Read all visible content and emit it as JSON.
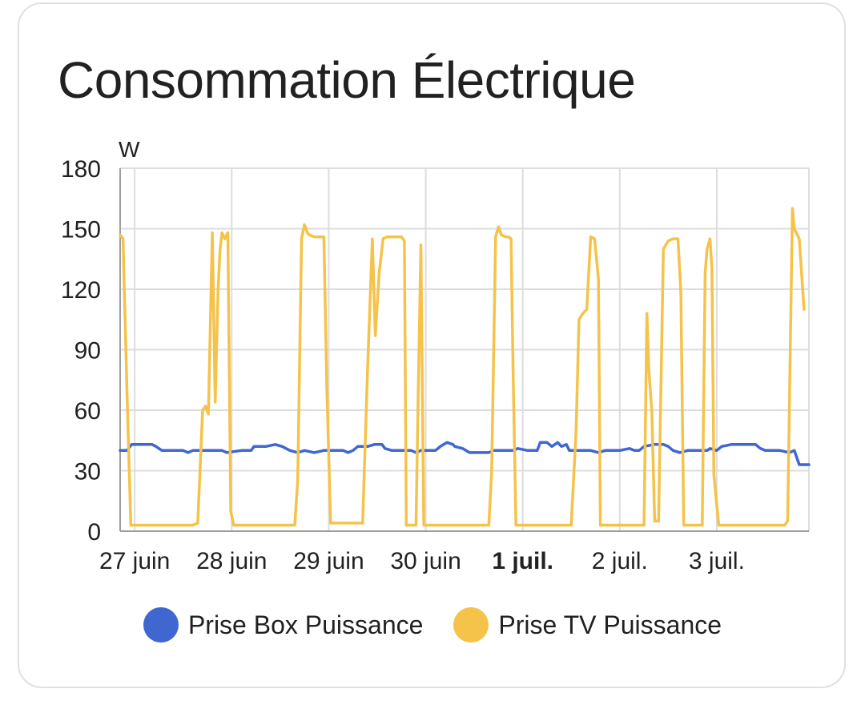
{
  "card": {
    "title": "Consommation Électrique"
  },
  "colors": {
    "box": "#3f67cf",
    "tv": "#f5c24a",
    "grid": "#dddddd",
    "axis": "#9e9e9e",
    "text": "#212121"
  },
  "chart_data": {
    "type": "line",
    "title": "Consommation Électrique",
    "ylabel": "W",
    "xlabel": "",
    "ylim": [
      0,
      180
    ],
    "yticks": [
      0,
      30,
      60,
      90,
      120,
      150,
      180
    ],
    "xlim": [
      -0.15,
      6.95
    ],
    "xticks": [
      {
        "x": 0,
        "label": "27 juin",
        "bold": false
      },
      {
        "x": 1,
        "label": "28 juin",
        "bold": false
      },
      {
        "x": 2,
        "label": "29 juin",
        "bold": false
      },
      {
        "x": 3,
        "label": "30 juin",
        "bold": false
      },
      {
        "x": 4,
        "label": "1 juil.",
        "bold": true
      },
      {
        "x": 5,
        "label": "2 juil.",
        "bold": false
      },
      {
        "x": 6,
        "label": "3 juil.",
        "bold": false
      }
    ],
    "grid": true,
    "legend": "bottom",
    "series": [
      {
        "name": "Prise Box Puissance",
        "color": "#3f67cf",
        "points": [
          [
            -0.15,
            40
          ],
          [
            -0.08,
            40
          ],
          [
            -0.03,
            43
          ],
          [
            0.1,
            43
          ],
          [
            0.18,
            43
          ],
          [
            0.22,
            42
          ],
          [
            0.28,
            40
          ],
          [
            0.5,
            40
          ],
          [
            0.55,
            39
          ],
          [
            0.6,
            40
          ],
          [
            0.7,
            40
          ],
          [
            0.75,
            40
          ],
          [
            0.8,
            40
          ],
          [
            0.9,
            40
          ],
          [
            0.95,
            39
          ],
          [
            1.1,
            40
          ],
          [
            1.2,
            40
          ],
          [
            1.23,
            42
          ],
          [
            1.35,
            42
          ],
          [
            1.45,
            43
          ],
          [
            1.52,
            42
          ],
          [
            1.6,
            40
          ],
          [
            1.68,
            39
          ],
          [
            1.75,
            40
          ],
          [
            1.85,
            39
          ],
          [
            1.95,
            40
          ],
          [
            2.1,
            40
          ],
          [
            2.15,
            40
          ],
          [
            2.2,
            39
          ],
          [
            2.25,
            40
          ],
          [
            2.3,
            42
          ],
          [
            2.4,
            42
          ],
          [
            2.47,
            43
          ],
          [
            2.55,
            43
          ],
          [
            2.58,
            41
          ],
          [
            2.65,
            40
          ],
          [
            2.75,
            40
          ],
          [
            2.85,
            40
          ],
          [
            2.9,
            39
          ],
          [
            2.95,
            40
          ],
          [
            3.1,
            40
          ],
          [
            3.15,
            42
          ],
          [
            3.22,
            44
          ],
          [
            3.28,
            43
          ],
          [
            3.3,
            42
          ],
          [
            3.38,
            41
          ],
          [
            3.45,
            39
          ],
          [
            3.55,
            39
          ],
          [
            3.65,
            39
          ],
          [
            3.7,
            40
          ],
          [
            3.8,
            40
          ],
          [
            3.85,
            40
          ],
          [
            3.9,
            40
          ],
          [
            3.95,
            41
          ],
          [
            4.05,
            40
          ],
          [
            4.1,
            40
          ],
          [
            4.15,
            40
          ],
          [
            4.18,
            44
          ],
          [
            4.25,
            44
          ],
          [
            4.3,
            42
          ],
          [
            4.36,
            44
          ],
          [
            4.4,
            42
          ],
          [
            4.45,
            43
          ],
          [
            4.48,
            40
          ],
          [
            4.55,
            40
          ],
          [
            4.6,
            40
          ],
          [
            4.7,
            40
          ],
          [
            4.78,
            39
          ],
          [
            4.85,
            40
          ],
          [
            4.9,
            40
          ],
          [
            5.0,
            40
          ],
          [
            5.1,
            41
          ],
          [
            5.15,
            40
          ],
          [
            5.2,
            40
          ],
          [
            5.25,
            42
          ],
          [
            5.35,
            43
          ],
          [
            5.45,
            43
          ],
          [
            5.5,
            42
          ],
          [
            5.55,
            40
          ],
          [
            5.62,
            39
          ],
          [
            5.7,
            40
          ],
          [
            5.8,
            40
          ],
          [
            5.9,
            40
          ],
          [
            5.93,
            41
          ],
          [
            6.0,
            40
          ],
          [
            6.05,
            42
          ],
          [
            6.15,
            43
          ],
          [
            6.22,
            43
          ],
          [
            6.28,
            43
          ],
          [
            6.35,
            43
          ],
          [
            6.4,
            43
          ],
          [
            6.45,
            41
          ],
          [
            6.5,
            40
          ],
          [
            6.55,
            40
          ],
          [
            6.6,
            40
          ],
          [
            6.65,
            40
          ],
          [
            6.75,
            39
          ],
          [
            6.8,
            40
          ],
          [
            6.85,
            33
          ],
          [
            6.95,
            33
          ]
        ]
      },
      {
        "name": "Prise TV Puissance",
        "color": "#f5c24a",
        "points": [
          [
            -0.15,
            147
          ],
          [
            -0.12,
            145
          ],
          [
            -0.08,
            70
          ],
          [
            -0.04,
            3
          ],
          [
            0.1,
            3
          ],
          [
            0.3,
            3
          ],
          [
            0.5,
            3
          ],
          [
            0.6,
            3
          ],
          [
            0.65,
            4
          ],
          [
            0.7,
            60
          ],
          [
            0.73,
            62
          ],
          [
            0.76,
            58
          ],
          [
            0.8,
            148
          ],
          [
            0.83,
            64
          ],
          [
            0.86,
            120
          ],
          [
            0.88,
            140
          ],
          [
            0.9,
            148
          ],
          [
            0.93,
            145
          ],
          [
            0.96,
            148
          ],
          [
            0.99,
            10
          ],
          [
            1.02,
            3
          ],
          [
            1.2,
            3
          ],
          [
            1.4,
            3
          ],
          [
            1.55,
            3
          ],
          [
            1.65,
            3
          ],
          [
            1.68,
            25
          ],
          [
            1.72,
            145
          ],
          [
            1.75,
            152
          ],
          [
            1.78,
            148
          ],
          [
            1.8,
            147
          ],
          [
            1.85,
            146
          ],
          [
            1.9,
            146
          ],
          [
            1.95,
            146
          ],
          [
            1.98,
            72
          ],
          [
            2.02,
            4
          ],
          [
            2.15,
            4
          ],
          [
            2.3,
            4
          ],
          [
            2.35,
            4
          ],
          [
            2.4,
            80
          ],
          [
            2.45,
            145
          ],
          [
            2.48,
            97
          ],
          [
            2.52,
            128
          ],
          [
            2.56,
            145
          ],
          [
            2.6,
            146
          ],
          [
            2.65,
            146
          ],
          [
            2.7,
            146
          ],
          [
            2.75,
            146
          ],
          [
            2.78,
            144
          ],
          [
            2.8,
            3
          ],
          [
            2.9,
            3
          ],
          [
            2.92,
            62
          ],
          [
            2.95,
            142
          ],
          [
            2.98,
            3
          ],
          [
            3.05,
            3
          ],
          [
            3.2,
            3
          ],
          [
            3.4,
            3
          ],
          [
            3.6,
            3
          ],
          [
            3.65,
            3
          ],
          [
            3.68,
            30
          ],
          [
            3.72,
            146
          ],
          [
            3.75,
            151
          ],
          [
            3.78,
            147
          ],
          [
            3.82,
            146
          ],
          [
            3.85,
            146
          ],
          [
            3.88,
            145
          ],
          [
            3.9,
            80
          ],
          [
            3.93,
            3
          ],
          [
            4.1,
            3
          ],
          [
            4.3,
            3
          ],
          [
            4.45,
            3
          ],
          [
            4.5,
            3
          ],
          [
            4.55,
            50
          ],
          [
            4.58,
            105
          ],
          [
            4.62,
            108
          ],
          [
            4.66,
            110
          ],
          [
            4.7,
            146
          ],
          [
            4.74,
            145
          ],
          [
            4.78,
            125
          ],
          [
            4.8,
            3
          ],
          [
            4.9,
            3
          ],
          [
            5.0,
            3
          ],
          [
            5.2,
            3
          ],
          [
            5.25,
            3
          ],
          [
            5.28,
            108
          ],
          [
            5.3,
            80
          ],
          [
            5.33,
            60
          ],
          [
            5.36,
            5
          ],
          [
            5.4,
            5
          ],
          [
            5.42,
            60
          ],
          [
            5.45,
            140
          ],
          [
            5.5,
            144
          ],
          [
            5.55,
            145
          ],
          [
            5.6,
            145
          ],
          [
            5.63,
            118
          ],
          [
            5.66,
            3
          ],
          [
            5.75,
            3
          ],
          [
            5.85,
            3
          ],
          [
            5.88,
            128
          ],
          [
            5.9,
            140
          ],
          [
            5.93,
            145
          ],
          [
            5.95,
            130
          ],
          [
            5.97,
            28
          ],
          [
            6.02,
            3
          ],
          [
            6.1,
            3
          ],
          [
            6.2,
            3
          ],
          [
            6.4,
            3
          ],
          [
            6.6,
            3
          ],
          [
            6.7,
            3
          ],
          [
            6.73,
            5
          ],
          [
            6.78,
            160
          ],
          [
            6.8,
            150
          ],
          [
            6.85,
            145
          ],
          [
            6.9,
            110
          ]
        ]
      }
    ]
  }
}
